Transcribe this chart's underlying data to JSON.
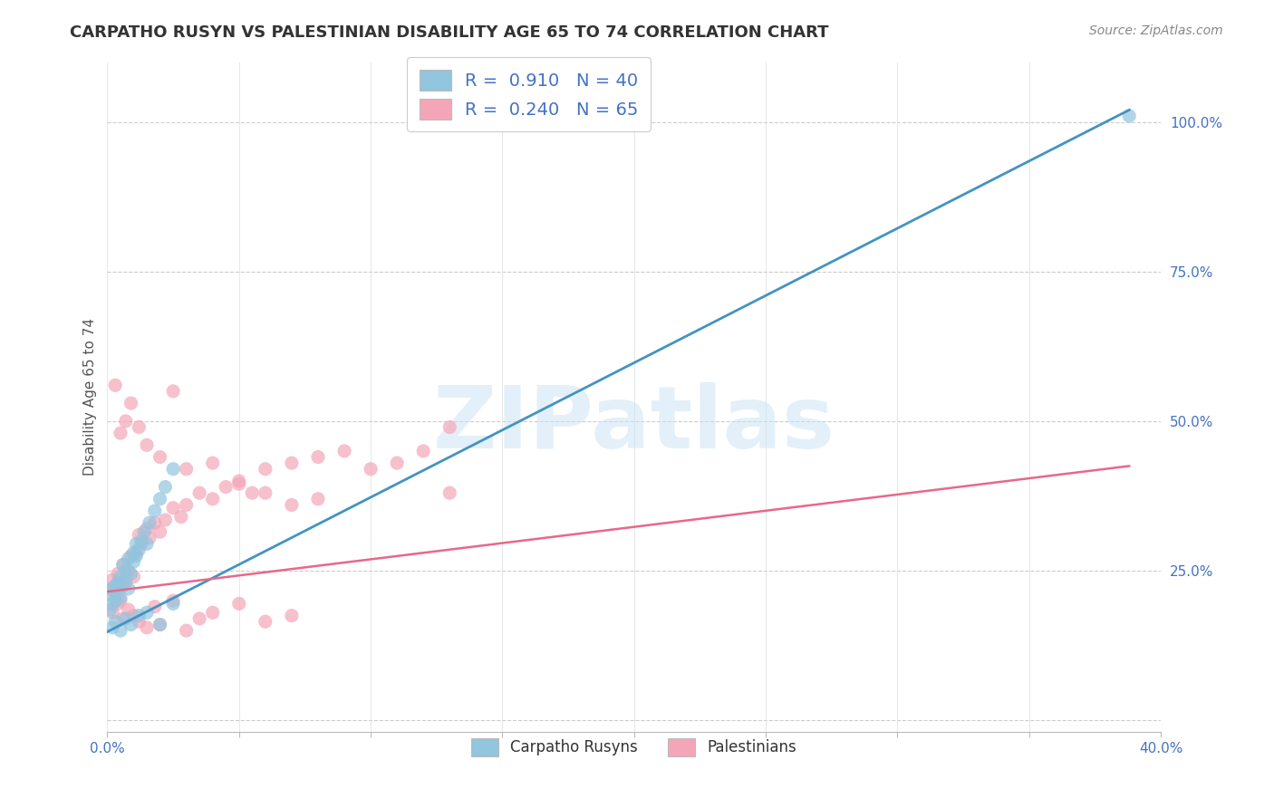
{
  "title": "CARPATHO RUSYN VS PALESTINIAN DISABILITY AGE 65 TO 74 CORRELATION CHART",
  "source": "Source: ZipAtlas.com",
  "ylabel": "Disability Age 65 to 74",
  "xlim": [
    0.0,
    0.4
  ],
  "ylim": [
    -0.02,
    1.1
  ],
  "xtick_positions": [
    0.0,
    0.05,
    0.1,
    0.15,
    0.2,
    0.25,
    0.3,
    0.35,
    0.4
  ],
  "xticklabels": [
    "0.0%",
    "",
    "",
    "",
    "",
    "",
    "",
    "",
    "40.0%"
  ],
  "ytick_positions": [
    0.0,
    0.25,
    0.5,
    0.75,
    1.0
  ],
  "yticklabels": [
    "",
    "25.0%",
    "50.0%",
    "75.0%",
    "100.0%"
  ],
  "blue_color": "#92c5de",
  "pink_color": "#f4a6b8",
  "blue_line_color": "#4393c3",
  "pink_line_color": "#e8688a",
  "legend_text_blue": "R =  0.910   N = 40",
  "legend_text_pink": "R =  0.240   N = 65",
  "label_blue": "Carpatho Rusyns",
  "label_pink": "Palestinians",
  "watermark": "ZIPatlas",
  "blue_line_x": [
    0.0,
    0.388
  ],
  "blue_line_y": [
    0.148,
    1.02
  ],
  "pink_line_x": [
    0.0,
    0.388
  ],
  "pink_line_y": [
    0.215,
    0.425
  ],
  "blue_x": [
    0.001,
    0.001,
    0.002,
    0.002,
    0.003,
    0.003,
    0.004,
    0.004,
    0.005,
    0.005,
    0.006,
    0.006,
    0.007,
    0.007,
    0.008,
    0.008,
    0.009,
    0.01,
    0.01,
    0.011,
    0.011,
    0.012,
    0.013,
    0.014,
    0.015,
    0.016,
    0.018,
    0.02,
    0.022,
    0.025,
    0.002,
    0.003,
    0.005,
    0.007,
    0.009,
    0.012,
    0.015,
    0.02,
    0.025,
    0.388
  ],
  "blue_y": [
    0.185,
    0.21,
    0.22,
    0.195,
    0.225,
    0.2,
    0.215,
    0.23,
    0.205,
    0.24,
    0.225,
    0.26,
    0.235,
    0.25,
    0.22,
    0.27,
    0.245,
    0.265,
    0.28,
    0.275,
    0.295,
    0.285,
    0.3,
    0.315,
    0.295,
    0.33,
    0.35,
    0.37,
    0.39,
    0.42,
    0.155,
    0.165,
    0.15,
    0.17,
    0.16,
    0.175,
    0.18,
    0.16,
    0.195,
    1.01
  ],
  "pink_x": [
    0.001,
    0.002,
    0.003,
    0.004,
    0.005,
    0.006,
    0.007,
    0.008,
    0.009,
    0.01,
    0.011,
    0.012,
    0.013,
    0.015,
    0.016,
    0.018,
    0.02,
    0.022,
    0.025,
    0.028,
    0.03,
    0.035,
    0.04,
    0.045,
    0.05,
    0.055,
    0.06,
    0.07,
    0.08,
    0.09,
    0.1,
    0.11,
    0.12,
    0.13,
    0.002,
    0.004,
    0.006,
    0.008,
    0.01,
    0.012,
    0.015,
    0.018,
    0.02,
    0.025,
    0.03,
    0.035,
    0.04,
    0.05,
    0.06,
    0.07,
    0.003,
    0.005,
    0.007,
    0.009,
    0.012,
    0.015,
    0.02,
    0.025,
    0.03,
    0.04,
    0.05,
    0.06,
    0.07,
    0.08,
    0.13
  ],
  "pink_y": [
    0.22,
    0.235,
    0.215,
    0.245,
    0.2,
    0.26,
    0.23,
    0.25,
    0.275,
    0.24,
    0.28,
    0.31,
    0.295,
    0.32,
    0.305,
    0.33,
    0.315,
    0.335,
    0.355,
    0.34,
    0.36,
    0.38,
    0.37,
    0.39,
    0.4,
    0.38,
    0.42,
    0.43,
    0.44,
    0.45,
    0.42,
    0.43,
    0.45,
    0.38,
    0.18,
    0.195,
    0.17,
    0.185,
    0.175,
    0.165,
    0.155,
    0.19,
    0.16,
    0.2,
    0.15,
    0.17,
    0.18,
    0.195,
    0.165,
    0.175,
    0.56,
    0.48,
    0.5,
    0.53,
    0.49,
    0.46,
    0.44,
    0.55,
    0.42,
    0.43,
    0.395,
    0.38,
    0.36,
    0.37,
    0.49
  ]
}
